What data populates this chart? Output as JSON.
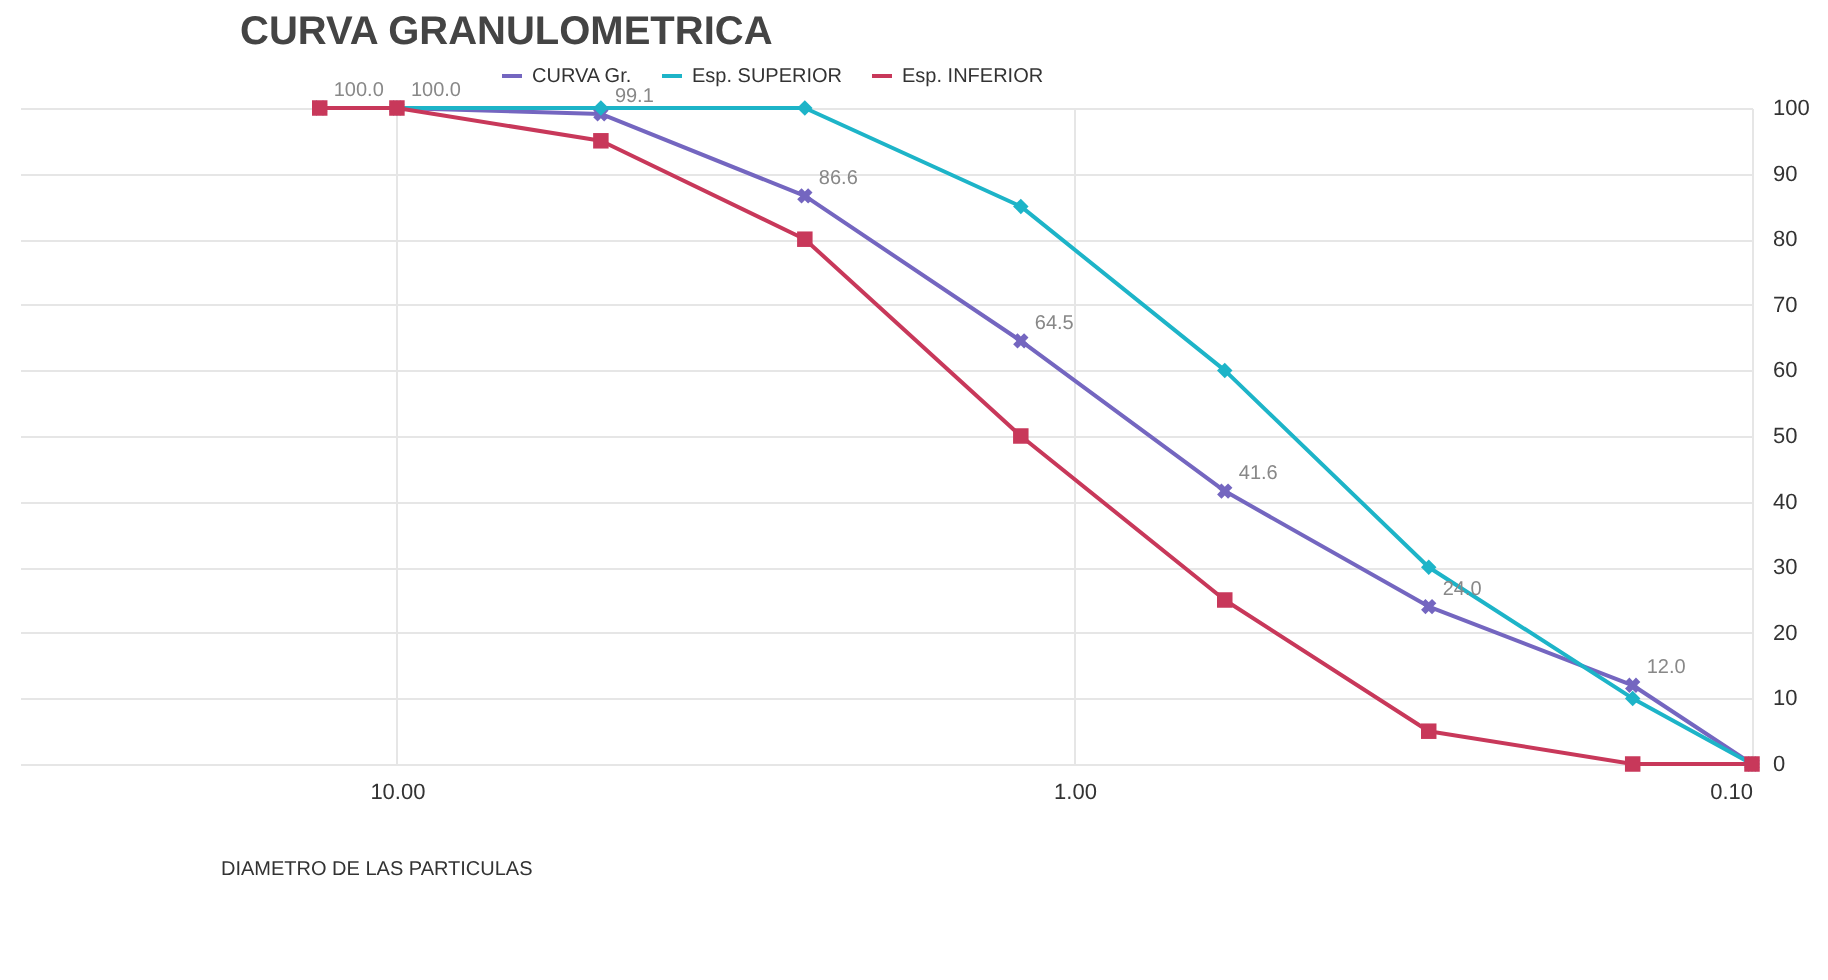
{
  "chart_data": {
    "type": "line",
    "title": "CURVA GRANULOMETRICA",
    "xlabel": "DIAMETRO DE LAS PARTICULAS",
    "x": [
      13,
      10,
      5,
      2.5,
      1.2,
      0.6,
      0.3,
      0.15,
      0.1
    ],
    "log": "x",
    "xlim": [
      36,
      0.1
    ],
    "xticks": [
      {
        "value": 10,
        "label": "10.00"
      },
      {
        "value": 1,
        "label": "1.00"
      },
      {
        "value": 0.1,
        "label": "0.10"
      }
    ],
    "ylim": [
      0,
      100
    ],
    "yticks": [
      0,
      10,
      20,
      30,
      40,
      50,
      60,
      70,
      80,
      90,
      100
    ],
    "grid": true,
    "legend": "top",
    "series": [
      {
        "name": "CURVA Gr.",
        "color": "#7466c0",
        "marker": "cross",
        "values": [
          100,
          100,
          99.1,
          86.6,
          64.5,
          41.6,
          24,
          12,
          0
        ],
        "value_labels": [
          "100.0",
          "100.0",
          "99.1",
          "86.6",
          "64.5",
          "41.6",
          "24.0",
          "12.0",
          null
        ]
      },
      {
        "name": "Esp. SUPERIOR",
        "color": "#1db4c8",
        "marker": "diamond",
        "values": [
          null,
          100,
          100,
          100,
          85,
          60,
          30,
          10,
          0
        ]
      },
      {
        "name": "Esp. INFERIOR",
        "color": "#c8385a",
        "marker": "square",
        "values": [
          100,
          100,
          95,
          80,
          50,
          25,
          5,
          0,
          0
        ]
      }
    ]
  }
}
